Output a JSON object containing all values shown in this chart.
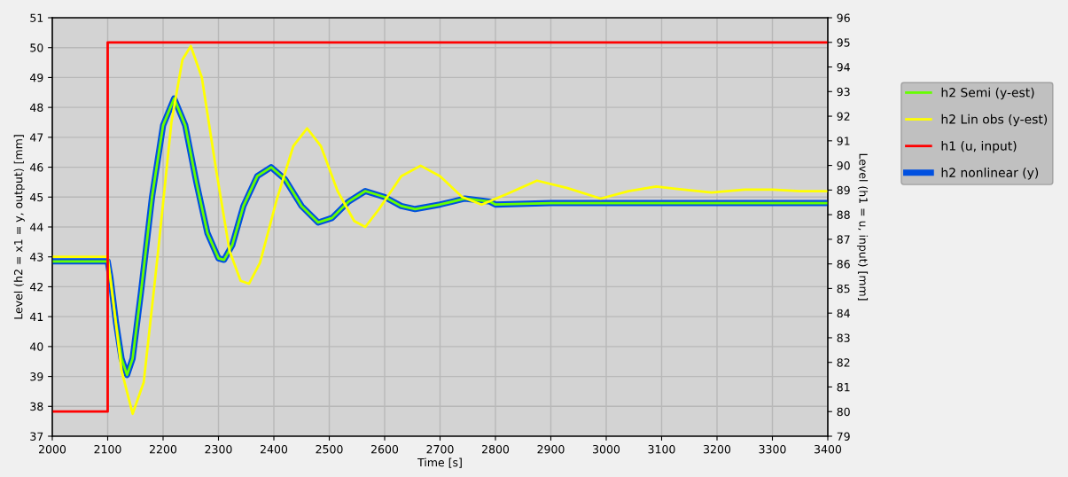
{
  "chart_data": {
    "type": "line",
    "xlabel": "Time [s]",
    "ylabel": "Level (h2 = x1 = y, output) [mm]",
    "y2label": "Level (h1 = u, input) [mm]",
    "xlim": [
      2000,
      3400
    ],
    "xticks": [
      2000,
      2100,
      2200,
      2300,
      2400,
      2500,
      2600,
      2700,
      2800,
      2900,
      3000,
      3100,
      3200,
      3300,
      3400
    ],
    "ylim": [
      37,
      51
    ],
    "yticks": [
      37,
      38,
      39,
      40,
      41,
      42,
      43,
      44,
      45,
      46,
      47,
      48,
      49,
      50,
      51
    ],
    "y2lim": [
      79,
      96
    ],
    "y2ticks": [
      79,
      80,
      81,
      82,
      83,
      84,
      85,
      86,
      87,
      88,
      89,
      90,
      91,
      92,
      93,
      94,
      95,
      96
    ],
    "grid": true,
    "legend": "right",
    "series": [
      {
        "name": "h2 Semi (y-est)",
        "color": "#66ff00",
        "x": [
          2000,
          2100,
          2105,
          2115,
          2125,
          2135,
          2145,
          2160,
          2180,
          2200,
          2220,
          2240,
          2260,
          2280,
          2300,
          2310,
          2325,
          2345,
          2370,
          2395,
          2420,
          2450,
          2480,
          2505,
          2535,
          2565,
          2600,
          2630,
          2655,
          2700,
          2745,
          2790,
          2800,
          2900,
          3000,
          3100,
          3200,
          3300,
          3400
        ],
        "values": [
          42.85,
          42.85,
          42.3,
          40.8,
          39.6,
          39.05,
          39.6,
          41.8,
          45.0,
          47.4,
          48.3,
          47.4,
          45.5,
          43.8,
          42.95,
          42.9,
          43.4,
          44.7,
          45.7,
          46.0,
          45.6,
          44.7,
          44.15,
          44.3,
          44.85,
          45.2,
          45.0,
          44.7,
          44.6,
          44.75,
          44.95,
          44.85,
          44.75,
          44.8,
          44.8,
          44.8,
          44.8,
          44.8,
          44.8
        ]
      },
      {
        "name": "h2 Lin obs (y-est)",
        "color": "#ffff00",
        "x": [
          2000,
          2100,
          2110,
          2125,
          2145,
          2165,
          2190,
          2215,
          2235,
          2250,
          2270,
          2295,
          2320,
          2340,
          2355,
          2375,
          2405,
          2435,
          2460,
          2485,
          2515,
          2545,
          2565,
          2590,
          2630,
          2665,
          2700,
          2740,
          2775,
          2820,
          2875,
          2930,
          2990,
          3040,
          3090,
          3140,
          3190,
          3250,
          3300,
          3350,
          3400
        ],
        "values": [
          43.0,
          43.0,
          41.5,
          39.2,
          37.75,
          38.8,
          43.0,
          47.5,
          49.6,
          50.05,
          49.0,
          46.0,
          43.2,
          42.2,
          42.1,
          42.8,
          44.9,
          46.7,
          47.3,
          46.7,
          45.2,
          44.2,
          44.0,
          44.6,
          45.7,
          46.05,
          45.7,
          45.0,
          44.75,
          45.1,
          45.55,
          45.3,
          44.95,
          45.2,
          45.35,
          45.25,
          45.15,
          45.25,
          45.25,
          45.2,
          45.2
        ]
      },
      {
        "name": "h1 (u, input)",
        "color": "#ff0000",
        "type": "step",
        "axis": "y2",
        "x": [
          2000,
          2100,
          3400
        ],
        "values": [
          80,
          95,
          95
        ]
      },
      {
        "name": "h2 nonlinear (y)",
        "color": "#0050e0",
        "x": [
          2000,
          2100,
          2105,
          2115,
          2125,
          2135,
          2145,
          2160,
          2180,
          2200,
          2220,
          2240,
          2260,
          2280,
          2300,
          2310,
          2325,
          2345,
          2370,
          2395,
          2420,
          2450,
          2480,
          2505,
          2535,
          2565,
          2600,
          2630,
          2655,
          2700,
          2745,
          2790,
          2800,
          2900,
          3000,
          3100,
          3200,
          3300,
          3400
        ],
        "values": [
          42.85,
          42.85,
          42.3,
          40.8,
          39.6,
          39.05,
          39.6,
          41.8,
          45.0,
          47.4,
          48.3,
          47.4,
          45.5,
          43.8,
          42.95,
          42.9,
          43.4,
          44.7,
          45.7,
          46.0,
          45.6,
          44.7,
          44.15,
          44.3,
          44.85,
          45.2,
          45.0,
          44.7,
          44.6,
          44.75,
          44.95,
          44.85,
          44.75,
          44.8,
          44.8,
          44.8,
          44.8,
          44.8,
          44.8
        ]
      }
    ]
  }
}
